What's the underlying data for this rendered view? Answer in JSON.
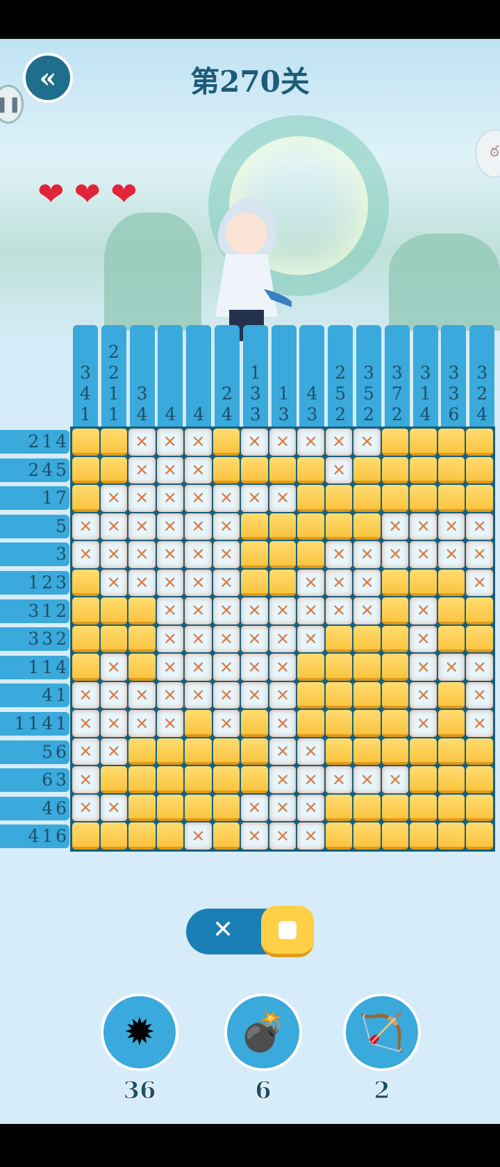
{
  "header": {
    "title": "第270关",
    "back_icon": "chevron-left-icon"
  },
  "lives": {
    "hearts": 3,
    "max": 3
  },
  "puzzle": {
    "col_clues": [
      [
        "3",
        "4",
        "1"
      ],
      [
        "2",
        "2",
        "1",
        "1"
      ],
      [
        "3",
        "4"
      ],
      [
        "4"
      ],
      [
        "4"
      ],
      [
        "2",
        "4"
      ],
      [
        "1",
        "3",
        "3"
      ],
      [
        "1",
        "3"
      ],
      [
        "4",
        "3"
      ],
      [
        "2",
        "5",
        "2"
      ],
      [
        "3",
        "5",
        "2"
      ],
      [
        "3",
        "7",
        "2"
      ],
      [
        "3",
        "1",
        "4"
      ],
      [
        "3",
        "3",
        "6"
      ],
      [
        "3",
        "2",
        "4"
      ]
    ],
    "row_clues": [
      "2 1 4",
      "2 4 5",
      "1 7",
      "5",
      "3",
      "1 2 3",
      "3 1 2",
      "3 3 2",
      "1 1 4",
      "4 1",
      "1 1 4 1",
      "5 6",
      "6 3",
      "4 6",
      "4 1 6"
    ],
    "grid": [
      "FFXXXFXXXXXFFFF",
      "FFXXXFFFFXFFFFF",
      "FXXXXXXXFFFFFFF",
      "XXXXXXFFFFFXXXX",
      "XXXXXXFFFXXXXXX",
      "FXXXXXFFXXXFFFX",
      "FFFXXXXXXXXFXFF",
      "FFFXXXXXXFFFXFF",
      "FXFXXXXXFFFFXXX",
      "XXXXXXXXFFFFXFX",
      "XXXXFXFXFFFFXFX",
      "XXFFFFFXXFFFFFF",
      "XFFFFFFXXXXXFFF",
      "XXFFFFXXXFFFFFF",
      "FFFFXFXXXFFFFFF"
    ],
    "cross_mark": "✕"
  },
  "mode_toggle": {
    "selected": "fill",
    "cross_label": "✕"
  },
  "powerups": [
    {
      "name": "spiked-flail",
      "count": "36"
    },
    {
      "name": "cannon",
      "count": "6"
    },
    {
      "name": "crossbow",
      "count": "2"
    }
  ],
  "colors": {
    "filled": "#fbc440",
    "clue_bg": "#3aa9db",
    "grid_border": "#15607e",
    "cross": "#d97e4a"
  }
}
